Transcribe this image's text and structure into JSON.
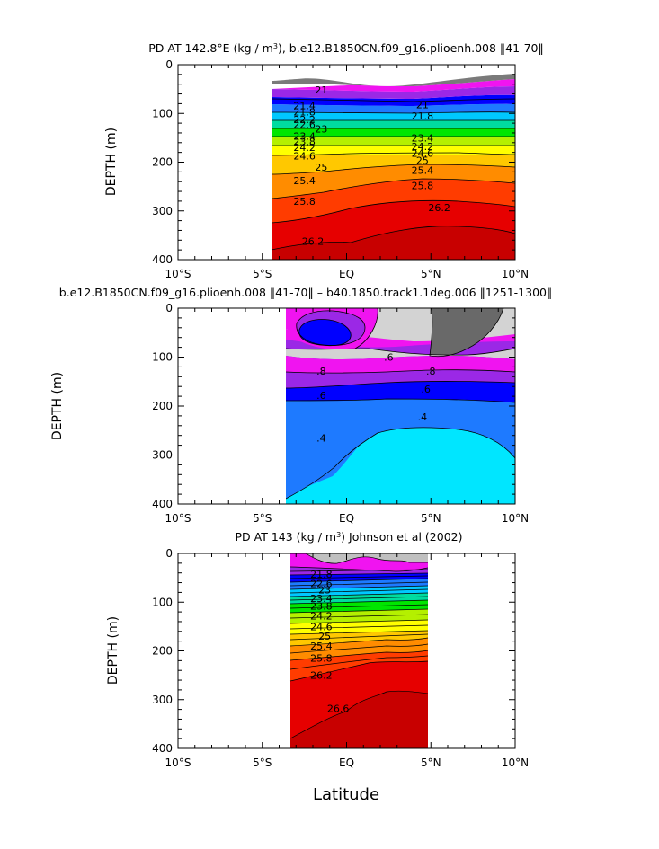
{
  "figure": {
    "xlabel": "Latitude"
  },
  "chart_data": [
    {
      "type": "heatmap",
      "title": "PD AT 142.8°E (kg / m³), b.e12.B1850CN.f09_g16.plioenh.008 ‖41-70‖",
      "title_parts": {
        "prefix": "PD AT 142.8°E (kg / m",
        "sup": "3",
        "suffix": "), b.e12.B1850CN.f09_g16.plioenh.008 ‖41-70‖"
      },
      "ylabel": "DEPTH (m)",
      "xlabel": "",
      "xlim": [
        -10,
        10
      ],
      "ylim": [
        400,
        0
      ],
      "x_ticks": [
        -10,
        -5,
        0,
        5,
        10
      ],
      "x_tick_labels": [
        "10°S",
        "5°S",
        "EQ",
        "5°N",
        "10°N"
      ],
      "y_ticks": [
        0,
        100,
        200,
        300,
        400
      ],
      "y_tick_labels": [
        "0",
        "100",
        "200",
        "300",
        "400"
      ],
      "data_extent": {
        "x": [
          -4,
          10
        ],
        "top_depth": 55
      },
      "contour_labels": [
        {
          "text": "21",
          "x": -1.5,
          "y": 52
        },
        {
          "text": "21",
          "x": 4.5,
          "y": 82
        },
        {
          "text": "21.4",
          "x": -2.5,
          "y": 84
        },
        {
          "text": "21.8",
          "x": -2.5,
          "y": 97
        },
        {
          "text": "21.8",
          "x": 4.5,
          "y": 105
        },
        {
          "text": "22.2",
          "x": -2.5,
          "y": 112
        },
        {
          "text": "22.6",
          "x": -2.5,
          "y": 123
        },
        {
          "text": "23",
          "x": -1.5,
          "y": 132
        },
        {
          "text": "23.4",
          "x": -2.5,
          "y": 147
        },
        {
          "text": "23.4",
          "x": 4.5,
          "y": 150
        },
        {
          "text": "23.8",
          "x": -2.5,
          "y": 158
        },
        {
          "text": "24.2",
          "x": -2.5,
          "y": 170
        },
        {
          "text": "24.2",
          "x": 4.5,
          "y": 168
        },
        {
          "text": "24.6",
          "x": -2.5,
          "y": 187
        },
        {
          "text": "24.6",
          "x": 4.5,
          "y": 182
        },
        {
          "text": "25",
          "x": -1.5,
          "y": 210
        },
        {
          "text": "25",
          "x": 4.5,
          "y": 196
        },
        {
          "text": "25.4",
          "x": -2.5,
          "y": 238
        },
        {
          "text": "25.4",
          "x": 4.5,
          "y": 217
        },
        {
          "text": "25.8",
          "x": -2.5,
          "y": 280
        },
        {
          "text": "25.8",
          "x": 4.5,
          "y": 248
        },
        {
          "text": "26.2",
          "x": -2.0,
          "y": 362
        },
        {
          "text": "26.2",
          "x": 5.5,
          "y": 293
        }
      ],
      "colors": [
        "#7a7a7a",
        "#f014f0",
        "#9b28e6",
        "#0000ff",
        "#1e7aff",
        "#00c8ff",
        "#00dca0",
        "#00e600",
        "#b4f000",
        "#ffff00",
        "#ffc800",
        "#ff8c00",
        "#ff3c00",
        "#e60000",
        "#c80000"
      ]
    },
    {
      "type": "heatmap",
      "title": "b.e12.B1850CN.f09_g16.plioenh.008 ‖41-70‖ – b40.1850.track1.1deg.006 ‖1251-1300‖",
      "ylabel": "DEPTH (m)",
      "xlabel": "",
      "xlim": [
        -10,
        10
      ],
      "ylim": [
        400,
        0
      ],
      "x_ticks": [
        -10,
        -5,
        0,
        5,
        10
      ],
      "x_tick_labels": [
        "10°S",
        "5°S",
        "EQ",
        "5°N",
        "10°N"
      ],
      "y_ticks": [
        0,
        100,
        200,
        300,
        400
      ],
      "y_tick_labels": [
        "0",
        "100",
        "200",
        "300",
        "400"
      ],
      "data_extent": {
        "x": [
          -3,
          10
        ],
        "top_depth": 0
      },
      "contour_labels": [
        {
          "text": ".6",
          "x": 2.5,
          "y": 100
        },
        {
          "text": ".8",
          "x": -1.5,
          "y": 128
        },
        {
          "text": ".8",
          "x": 5.0,
          "y": 128
        },
        {
          "text": ".6",
          "x": -1.5,
          "y": 178
        },
        {
          "text": ".6",
          "x": 4.7,
          "y": 165
        },
        {
          "text": ".4",
          "x": 4.5,
          "y": 222
        },
        {
          "text": ".4",
          "x": -1.5,
          "y": 265
        }
      ],
      "colors": [
        "#696969",
        "#d3d3d3",
        "#f014f0",
        "#9b28e6",
        "#0000ff",
        "#1e7aff",
        "#00e6ff"
      ]
    },
    {
      "type": "heatmap",
      "title": "PD AT 143 (kg / m³) Johnson et al (2002)",
      "title_parts": {
        "prefix": "PD AT 143 (kg / m",
        "sup": "3",
        "suffix": ") Johnson et al (2002)"
      },
      "ylabel": "DEPTH (m)",
      "xlabel": "",
      "xlim": [
        -10,
        10
      ],
      "ylim": [
        400,
        0
      ],
      "x_ticks": [
        -10,
        -5,
        0,
        5,
        10
      ],
      "x_tick_labels": [
        "10°S",
        "5°S",
        "EQ",
        "5°N",
        "10°N"
      ],
      "y_ticks": [
        0,
        100,
        200,
        300,
        400
      ],
      "y_tick_labels": [
        "0",
        "100",
        "200",
        "300",
        "400"
      ],
      "data_extent": {
        "x": [
          -2.5,
          5
        ],
        "top_depth": 0
      },
      "contour_labels": [
        {
          "text": "21.8",
          "x": -1.5,
          "y": 42
        },
        {
          "text": "22.6",
          "x": -1.5,
          "y": 62
        },
        {
          "text": "23",
          "x": -1.3,
          "y": 75
        },
        {
          "text": "23.4",
          "x": -1.5,
          "y": 92
        },
        {
          "text": "23.8",
          "x": -1.5,
          "y": 108
        },
        {
          "text": "24.2",
          "x": -1.5,
          "y": 128
        },
        {
          "text": "24.6",
          "x": -1.5,
          "y": 150
        },
        {
          "text": "25",
          "x": -1.3,
          "y": 170
        },
        {
          "text": "25.4",
          "x": -1.5,
          "y": 190
        },
        {
          "text": "25.8",
          "x": -1.5,
          "y": 215
        },
        {
          "text": "26.2",
          "x": -1.5,
          "y": 250
        },
        {
          "text": "26.6",
          "x": -0.5,
          "y": 318
        }
      ],
      "colors": [
        "#c0c0c0",
        "#f014f0",
        "#9b28e6",
        "#0000ff",
        "#1e7aff",
        "#00c8ff",
        "#00dca0",
        "#00e600",
        "#b4f000",
        "#ffff00",
        "#ffc800",
        "#ff8c00",
        "#ff3c00",
        "#e60000",
        "#c80000"
      ]
    }
  ]
}
